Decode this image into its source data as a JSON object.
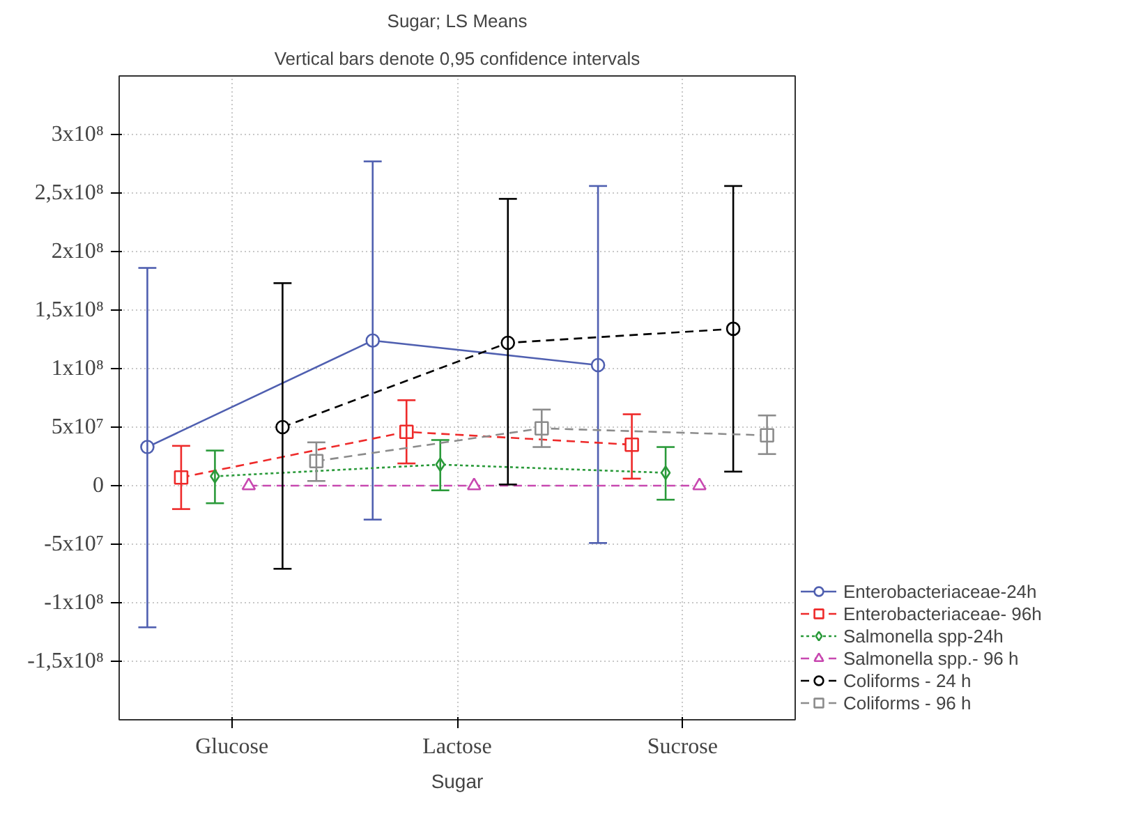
{
  "chart_data": {
    "type": "line",
    "title": "Sugar; LS Means",
    "subtitle": "Vertical bars denote 0,95 confidence intervals",
    "xlabel": "Sugar",
    "categories": [
      "Glucose",
      "Lactose",
      "Sucrose"
    ],
    "ylim": [
      -200000000,
      350000000
    ],
    "yticks": [
      {
        "value": -150000000,
        "label": "-1,5x10⁸"
      },
      {
        "value": -100000000,
        "label": "-1x10⁸"
      },
      {
        "value": -50000000,
        "label": "-5x10⁷"
      },
      0,
      {
        "value": 50000000,
        "label": "5x10⁷"
      },
      {
        "value": 100000000,
        "label": "1x10⁸"
      },
      {
        "value": 150000000,
        "label": "1,5x10⁸"
      },
      {
        "value": 200000000,
        "label": "2x10⁸"
      },
      {
        "value": 250000000,
        "label": "2,5x10⁸"
      },
      {
        "value": 300000000,
        "label": "3x10⁸"
      }
    ],
    "grid": true,
    "legend": "bottom right",
    "series": [
      {
        "name": "Enterobacteriaceae-24h",
        "color": "#4f5fb0",
        "marker": "circle",
        "line_style": "solid",
        "values": [
          33000000,
          124000000,
          103000000
        ],
        "errors": [
          [
            -121000000,
            186000000
          ],
          [
            -29000000,
            277000000
          ],
          [
            -49000000,
            256000000
          ]
        ]
      },
      {
        "name": "Enterobacteriaceae- 96h",
        "color": "#ee2a2a",
        "marker": "square",
        "line_style": "dashed",
        "values": [
          7000000,
          46000000,
          35000000
        ],
        "errors": [
          [
            -20000000,
            34000000
          ],
          [
            19000000,
            73000000
          ],
          [
            6000000,
            61000000
          ]
        ]
      },
      {
        "name": "Salmonella spp-24h",
        "color": "#2a9a3a",
        "marker": "diamond",
        "line_style": "dotted",
        "values": [
          8000000,
          18000000,
          11000000
        ],
        "errors": [
          [
            -15000000,
            30000000
          ],
          [
            -4000000,
            39000000
          ],
          [
            -12000000,
            33000000
          ]
        ]
      },
      {
        "name": "Salmonella spp.- 96 h",
        "color": "#c848b0",
        "marker": "triangle",
        "line_style": "dashed",
        "values": [
          0,
          0,
          0
        ]
      },
      {
        "name": "Coliforms - 24 h",
        "color": "#000000",
        "marker": "circle",
        "line_style": "dashed",
        "values": [
          50000000,
          122000000,
          134000000
        ],
        "errors": [
          [
            -71000000,
            173000000
          ],
          [
            1000000,
            245000000
          ],
          [
            12000000,
            256000000
          ]
        ]
      },
      {
        "name": "Coliforms - 96 h",
        "color": "#8c8c8c",
        "marker": "square",
        "line_style": "dashed",
        "values": [
          21000000,
          49000000,
          43000000
        ],
        "errors": [
          [
            4000000,
            37000000
          ],
          [
            33000000,
            65000000
          ],
          [
            27000000,
            60000000
          ]
        ]
      }
    ]
  }
}
